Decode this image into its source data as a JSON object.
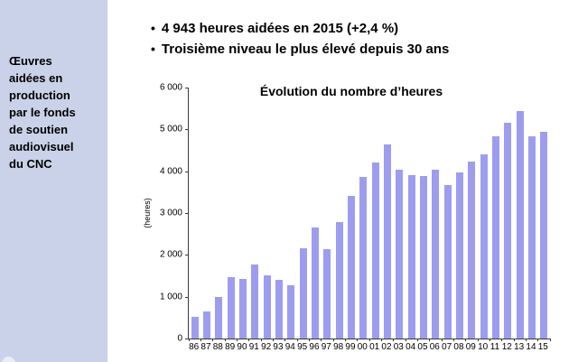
{
  "sidebar": {
    "bg_color": "#c9d2e8",
    "title_lines": [
      "Œuvres",
      "aidées en",
      "production",
      "par le fonds",
      "de soutien",
      "audiovisuel",
      "du CNC"
    ]
  },
  "bullets": {
    "marker": "•",
    "items": [
      "4 943 heures aidées en 2015 (+2,4 %)",
      "Troisième niveau le plus élevé depuis 30 ans"
    ]
  },
  "chart_data": {
    "type": "bar",
    "title": "Évolution du nombre d’heures",
    "xlabel": "",
    "ylabel": "(heures)",
    "ylim": [
      0,
      6000
    ],
    "yticks": [
      "6 000",
      "5 000",
      "4 000",
      "3 000",
      "2 000",
      "1 000",
      "0"
    ],
    "grid": false,
    "legend": "none",
    "bar_color": "#9d9df0",
    "axis_color": "#3a3a3a",
    "categories": [
      "86",
      "87",
      "88",
      "89",
      "90",
      "91",
      "92",
      "93",
      "94",
      "95",
      "96",
      "97",
      "98",
      "99",
      "00",
      "01",
      "02",
      "03",
      "04",
      "05",
      "06",
      "07",
      "08",
      "09",
      "10",
      "11",
      "12",
      "13",
      "14",
      "15"
    ],
    "values": [
      520,
      640,
      1000,
      1470,
      1420,
      1760,
      1520,
      1400,
      1270,
      2150,
      2650,
      2140,
      2780,
      3420,
      3860,
      4210,
      4640,
      4030,
      3910,
      3880,
      4030,
      3660,
      3970,
      4230,
      4410,
      4830,
      5150,
      5430,
      4827,
      4943
    ]
  }
}
